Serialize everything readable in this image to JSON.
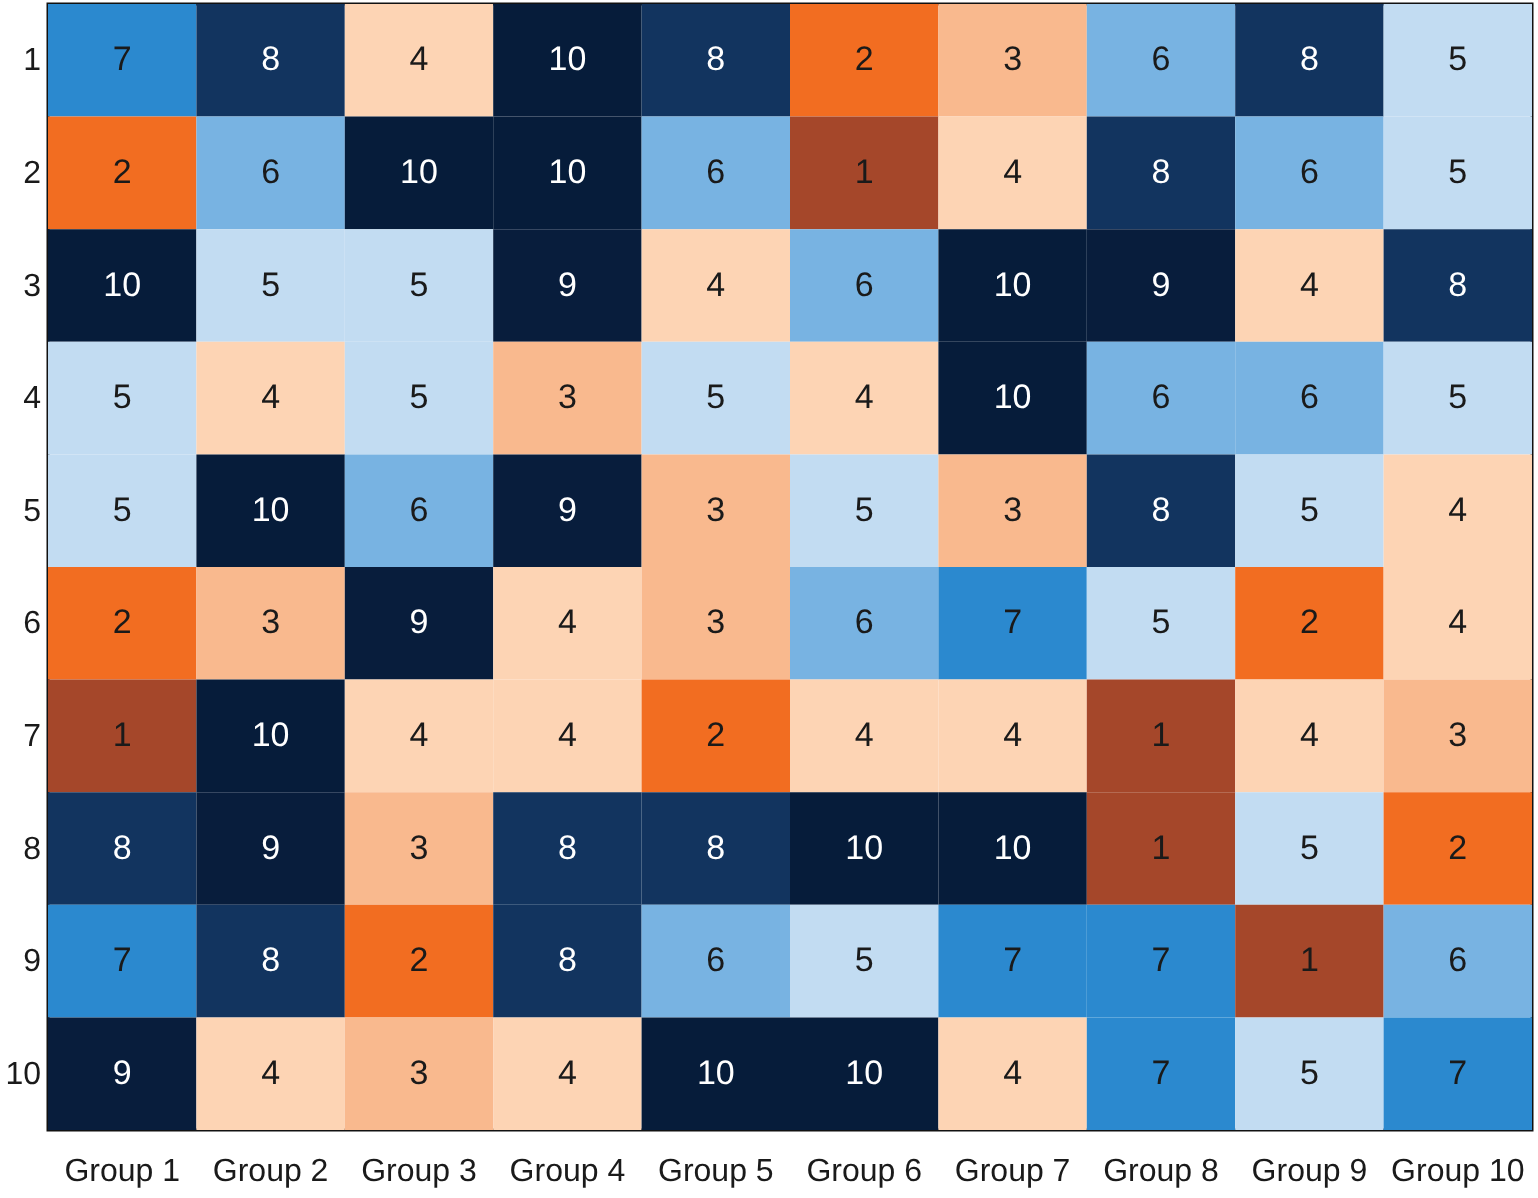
{
  "chart_data": {
    "type": "heatmap",
    "categories": [
      "Group 1",
      "Group 2",
      "Group 3",
      "Group 4",
      "Group 5",
      "Group 6",
      "Group 7",
      "Group 8",
      "Group 9",
      "Group 10"
    ],
    "y_categories": [
      "1",
      "2",
      "3",
      "4",
      "5",
      "6",
      "7",
      "8",
      "9",
      "10"
    ],
    "cells": [
      [
        7,
        8,
        4,
        10,
        8,
        2,
        3,
        6,
        8,
        5
      ],
      [
        2,
        6,
        10,
        10,
        6,
        1,
        4,
        8,
        6,
        5
      ],
      [
        10,
        5,
        5,
        9,
        4,
        6,
        10,
        9,
        4,
        8
      ],
      [
        5,
        4,
        5,
        3,
        5,
        4,
        10,
        6,
        6,
        5
      ],
      [
        5,
        10,
        6,
        9,
        3,
        5,
        3,
        8,
        5,
        4
      ],
      [
        2,
        3,
        9,
        4,
        3,
        6,
        7,
        5,
        2,
        4
      ],
      [
        1,
        10,
        4,
        4,
        2,
        4,
        4,
        1,
        4,
        3
      ],
      [
        8,
        9,
        3,
        8,
        8,
        10,
        10,
        1,
        5,
        2
      ],
      [
        7,
        8,
        2,
        8,
        6,
        5,
        7,
        7,
        1,
        6
      ],
      [
        9,
        4,
        3,
        4,
        10,
        10,
        4,
        7,
        5,
        7
      ]
    ],
    "colors": [
      "#a5472a",
      "#f26d21",
      "#f9b98e",
      "#fdd4b4",
      "#c2dcf2",
      "#78b3e2",
      "#2b89cf",
      "#12345f",
      "#081d3c",
      "#061c3a"
    ],
    "data_labels": true
  }
}
